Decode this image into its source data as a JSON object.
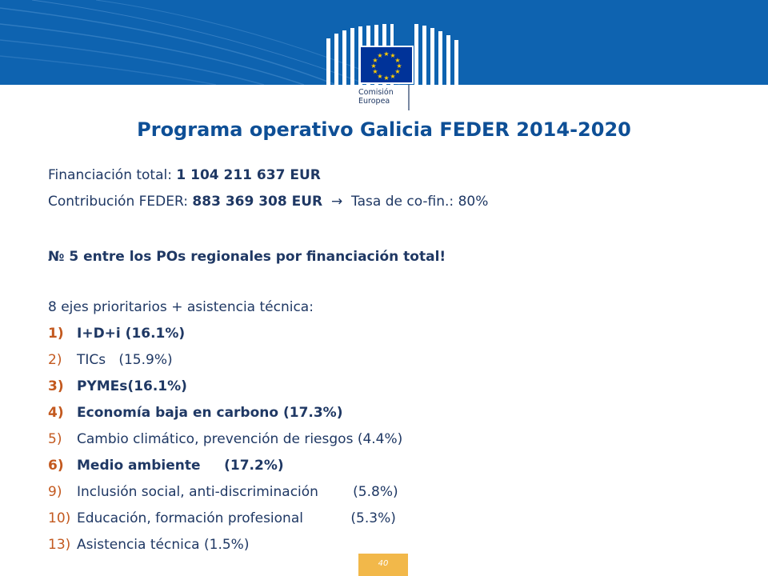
{
  "organization": {
    "line1": "Comisión",
    "line2": "Europea"
  },
  "title": "Programa operativo Galicia FEDER 2014-2020",
  "financing": {
    "label": "Financiación total: ",
    "value": "1 104 211 637 EUR"
  },
  "contribution": {
    "label": "Contribución FEDER: ",
    "value": "883 369 308 EUR",
    "arrow": "→",
    "rate": "Tasa de co-fin.: 80%"
  },
  "ranking": "№ 5 entre los POs regionales por financiación total!",
  "axes_intro": "8 ejes prioritarios + asistencia técnica:",
  "axes": [
    {
      "num": "1)",
      "text": "I+D+i (16.1%)",
      "bold": true
    },
    {
      "num": "2)",
      "text": "TICs   (15.9%)",
      "bold": false
    },
    {
      "num": "3)",
      "text": "PYMEs(16.1%)",
      "bold": true
    },
    {
      "num": "4)",
      "text": "Economía baja en carbono (17.3%)",
      "bold": true
    },
    {
      "num": "5)",
      "text": "Cambio climático, prevención de riesgos (4.4%)",
      "bold": false
    },
    {
      "num": "6)",
      "text": "Medio ambiente     (17.2%)",
      "bold": true
    },
    {
      "num": "9)",
      "text": "Inclusión social, anti-discriminación        (5.8%)",
      "bold": false
    },
    {
      "num": "10)",
      "text": "Educación, formación profesional           (5.3%)",
      "bold": false
    },
    {
      "num": "13)",
      "text": "Asistencia técnica (1.5%)",
      "bold": false
    }
  ],
  "page_number": "40",
  "colors": {
    "header_blue": "#0e63b0",
    "title_blue": "#0e4f96",
    "text_navy": "#1f3864",
    "number_orange": "#c3591f",
    "page_tab": "#f2b84a"
  }
}
